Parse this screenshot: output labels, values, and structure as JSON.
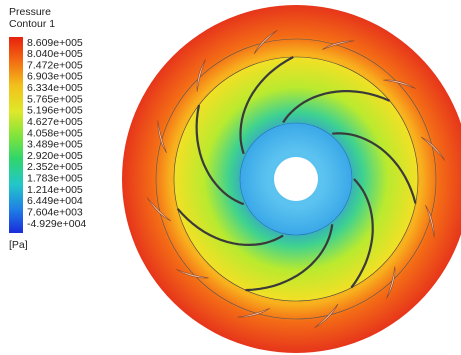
{
  "legend": {
    "title": "Pressure",
    "subtitle": "Contour 1",
    "labels": [
      "8.609e+005",
      "8.040e+005",
      "7.472e+005",
      "6.903e+005",
      "6.334e+005",
      "5.765e+005",
      "5.196e+005",
      "4.627e+005",
      "4.058e+005",
      "3.489e+005",
      "2.920e+005",
      "2.352e+005",
      "1.783e+005",
      "1.214e+005",
      "6.449e+004",
      "7.604e+003",
      "-4.929e+004"
    ],
    "unit": "[Pa]"
  }
}
